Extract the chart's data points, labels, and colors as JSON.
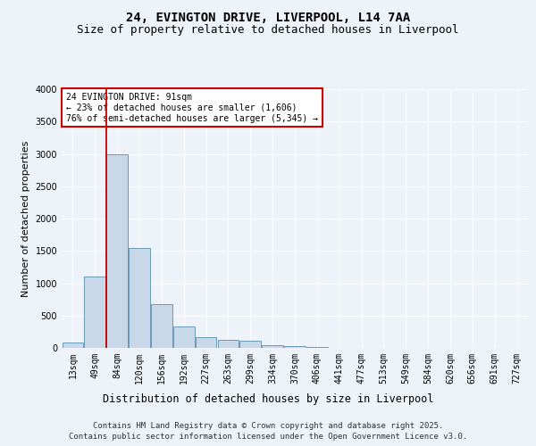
{
  "title1": "24, EVINGTON DRIVE, LIVERPOOL, L14 7AA",
  "title2": "Size of property relative to detached houses in Liverpool",
  "xlabel": "Distribution of detached houses by size in Liverpool",
  "ylabel": "Number of detached properties",
  "property_label": "24 EVINGTON DRIVE: 91sqm",
  "annotation_line1": "← 23% of detached houses are smaller (1,606)",
  "annotation_line2": "76% of semi-detached houses are larger (5,345) →",
  "categories": [
    "13sqm",
    "49sqm",
    "84sqm",
    "120sqm",
    "156sqm",
    "192sqm",
    "227sqm",
    "263sqm",
    "299sqm",
    "334sqm",
    "370sqm",
    "406sqm",
    "441sqm",
    "477sqm",
    "513sqm",
    "549sqm",
    "584sqm",
    "620sqm",
    "656sqm",
    "691sqm",
    "727sqm"
  ],
  "values": [
    80,
    1100,
    3000,
    1540,
    670,
    330,
    165,
    120,
    105,
    45,
    25,
    10,
    5,
    3,
    1,
    0,
    0,
    0,
    0,
    0,
    0
  ],
  "bar_color": "#c8d8e8",
  "bar_edge_color": "#5b8db0",
  "vline_color": "#cc0000",
  "vline_position": 2,
  "ylim": [
    0,
    4000
  ],
  "yticks": [
    0,
    500,
    1000,
    1500,
    2000,
    2500,
    3000,
    3500,
    4000
  ],
  "background_color": "#eef2f9",
  "plot_bg_color": "#eef2f9",
  "grid_color": "#ffffff",
  "annotation_box_facecolor": "#ffffff",
  "annotation_box_edgecolor": "#cc0000",
  "footer_line1": "Contains HM Land Registry data © Crown copyright and database right 2025.",
  "footer_line2": "Contains public sector information licensed under the Open Government Licence v3.0.",
  "title1_fontsize": 10,
  "title2_fontsize": 9,
  "xlabel_fontsize": 8.5,
  "ylabel_fontsize": 8,
  "tick_fontsize": 7,
  "annotation_fontsize": 7,
  "footer_fontsize": 6.5
}
